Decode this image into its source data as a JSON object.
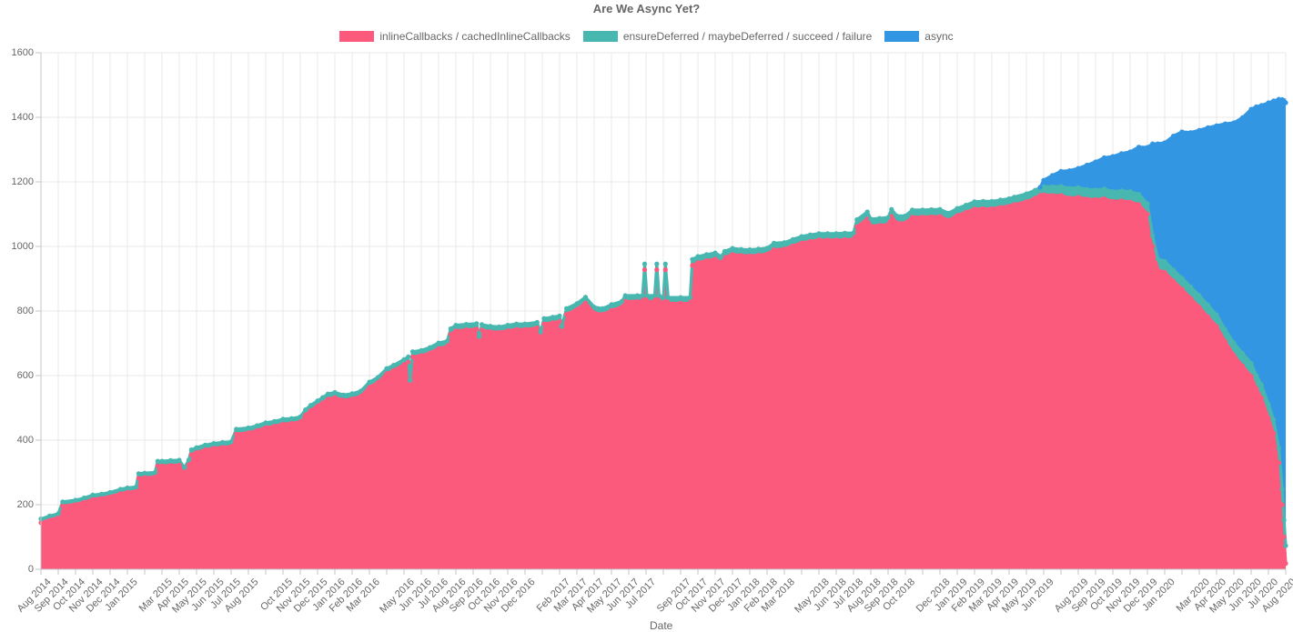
{
  "chart": {
    "title": "Are We Async Yet?"
  },
  "style": {
    "text_color": "#666666",
    "grid_color": "#e9e9e9",
    "axis_color": "#c6c6c6",
    "background": "#ffffff"
  },
  "chart_data": {
    "type": "area",
    "stacked": true,
    "title": "Are We Async Yet?",
    "xlabel": "Date",
    "ylabel": "",
    "ylim": [
      0,
      1600
    ],
    "y_ticks": [
      0,
      200,
      400,
      600,
      800,
      1000,
      1200,
      1400,
      1600
    ],
    "grid": true,
    "legend_position": "top",
    "x_unit": "months since Aug 2014",
    "x_tick_labels": [
      "Aug 2014",
      "Sep 2014",
      "Oct 2014",
      "Nov 2014",
      "Dec 2014",
      "Jan 2015",
      "",
      "Mar 2015",
      "Apr 2015",
      "May 2015",
      "Jun 2015",
      "Jul 2015",
      "Aug 2015",
      "",
      "Oct 2015",
      "Nov 2015",
      "Dec 2015",
      "Jan 2016",
      "Feb 2016",
      "Mar 2016",
      "",
      "May 2016",
      "Jun 2016",
      "Jul 2016",
      "Aug 2016",
      "Sep 2016",
      "Oct 2016",
      "Nov 2016",
      "Dec 2016",
      "",
      "Feb 2017",
      "Mar 2017",
      "Apr 2017",
      "May 2017",
      "Jun 2017",
      "Jul 2017",
      "",
      "Sep 2017",
      "Oct 2017",
      "Nov 2017",
      "Dec 2017",
      "Jan 2018",
      "Feb 2018",
      "Mar 2018",
      "",
      "May 2018",
      "Jun 2018",
      "Jul 2018",
      "Aug 2018",
      "Sep 2018",
      "Oct 2018",
      "",
      "Dec 2018",
      "Jan 2019",
      "Feb 2019",
      "Mar 2019",
      "Apr 2019",
      "May 2019",
      "Jun 2019",
      "",
      "Aug 2019",
      "Sep 2019",
      "Oct 2019",
      "Nov 2019",
      "Dec 2019",
      "Jan 2020",
      "",
      "Mar 2020",
      "Apr 2020",
      "May 2020",
      "Jun 2020",
      "Jul 2020",
      "Aug 2020"
    ],
    "series": [
      {
        "name": "inlineCallbacks / cachedInlineCallbacks",
        "color": "#FB5A7C",
        "key": "p"
      },
      {
        "name": "ensureDeferred / maybeDeferred / succeed / failure",
        "color": "#48B7B0",
        "key": "t"
      },
      {
        "name": "async",
        "color": "#3296E3",
        "key": "b"
      }
    ],
    "points_format": [
      "x_month_index",
      "inlineCallbacks",
      "ensureDeferred_delta",
      "async_delta"
    ],
    "points": [
      [
        0,
        144,
        12,
        null
      ],
      [
        0.5,
        153,
        12,
        null
      ],
      [
        1,
        160,
        12,
        null
      ],
      [
        1.25,
        196,
        13,
        null
      ],
      [
        2,
        201,
        13,
        null
      ],
      [
        2.5,
        208,
        13,
        null
      ],
      [
        3,
        217,
        13,
        null
      ],
      [
        3.5,
        220,
        13,
        null
      ],
      [
        4,
        225,
        13,
        null
      ],
      [
        4.6,
        235,
        13,
        null
      ],
      [
        5,
        239,
        13,
        null
      ],
      [
        5.5,
        242,
        13,
        null
      ],
      [
        5.65,
        282,
        14,
        null
      ],
      [
        6,
        284,
        14,
        null
      ],
      [
        6.6,
        286,
        14,
        null
      ],
      [
        6.75,
        320,
        15,
        null
      ],
      [
        7,
        320,
        15,
        null
      ],
      [
        7.5,
        322,
        15,
        null
      ],
      [
        8,
        323,
        15,
        null
      ],
      [
        8.3,
        300,
        15,
        null
      ],
      [
        8.55,
        324,
        15,
        null
      ],
      [
        8.7,
        355,
        15,
        null
      ],
      [
        9,
        362,
        15,
        null
      ],
      [
        9.5,
        370,
        15,
        null
      ],
      [
        10,
        375,
        15,
        null
      ],
      [
        10.5,
        378,
        15,
        null
      ],
      [
        11,
        380,
        15,
        null
      ],
      [
        11.3,
        419,
        15,
        null
      ],
      [
        12,
        423,
        15,
        null
      ],
      [
        12.5,
        430,
        15,
        null
      ],
      [
        13,
        439,
        15,
        null
      ],
      [
        13.5,
        443,
        15,
        null
      ],
      [
        14,
        450,
        15,
        null
      ],
      [
        14.5,
        452,
        15,
        null
      ],
      [
        15,
        457,
        15,
        null
      ],
      [
        15.3,
        478,
        16,
        null
      ],
      [
        15.6,
        492,
        16,
        null
      ],
      [
        16,
        506,
        16,
        null
      ],
      [
        16.3,
        516,
        16,
        null
      ],
      [
        16.6,
        527,
        16,
        null
      ],
      [
        17,
        532,
        16,
        null
      ],
      [
        17.5,
        524,
        16,
        null
      ],
      [
        18,
        528,
        16,
        null
      ],
      [
        18.5,
        536,
        16,
        null
      ],
      [
        19,
        564,
        16,
        null
      ],
      [
        19.5,
        579,
        16,
        null
      ],
      [
        20,
        606,
        16,
        null
      ],
      [
        20.4,
        616,
        16,
        null
      ],
      [
        21,
        634,
        16,
        null
      ],
      [
        21.25,
        642,
        16,
        null
      ],
      [
        21.35,
        570,
        15,
        null
      ],
      [
        21.5,
        658,
        16,
        null
      ],
      [
        22,
        662,
        16,
        null
      ],
      [
        22.5,
        670,
        17,
        null
      ],
      [
        23,
        684,
        17,
        null
      ],
      [
        23.5,
        690,
        17,
        null
      ],
      [
        23.7,
        728,
        17,
        null
      ],
      [
        24,
        739,
        17,
        null
      ],
      [
        24.6,
        742,
        17,
        null
      ],
      [
        25.2,
        744,
        17,
        null
      ],
      [
        25.35,
        705,
        16,
        null
      ],
      [
        25.5,
        741,
        17,
        null
      ],
      [
        26,
        736,
        17,
        null
      ],
      [
        26.5,
        734,
        17,
        null
      ],
      [
        27,
        739,
        17,
        null
      ],
      [
        27.5,
        743,
        17,
        null
      ],
      [
        28,
        743,
        17,
        null
      ],
      [
        28.7,
        748,
        17,
        null
      ],
      [
        28.9,
        718,
        17,
        null
      ],
      [
        29.1,
        760,
        17,
        null
      ],
      [
        29.6,
        764,
        17,
        null
      ],
      [
        30,
        768,
        17,
        null
      ],
      [
        30.12,
        735,
        17,
        null
      ],
      [
        30.4,
        790,
        18,
        null
      ],
      [
        31,
        805,
        18,
        null
      ],
      [
        31.5,
        825,
        18,
        null
      ],
      [
        32,
        794,
        18,
        null
      ],
      [
        32.5,
        790,
        18,
        null
      ],
      [
        33,
        802,
        18,
        null
      ],
      [
        33.6,
        812,
        18,
        null
      ],
      [
        33.8,
        830,
        18,
        null
      ],
      [
        34.5,
        830,
        18,
        null
      ],
      [
        34.8,
        830,
        18,
        null
      ],
      [
        34.92,
        928,
        18,
        null
      ],
      [
        35.05,
        830,
        18,
        null
      ],
      [
        35.5,
        830,
        18,
        null
      ],
      [
        35.62,
        928,
        18,
        null
      ],
      [
        35.75,
        830,
        18,
        null
      ],
      [
        36,
        824,
        18,
        null
      ],
      [
        36.12,
        928,
        18,
        null
      ],
      [
        36.28,
        824,
        18,
        null
      ],
      [
        37,
        824,
        18,
        null
      ],
      [
        37.55,
        824,
        18,
        null
      ],
      [
        37.68,
        941,
        19,
        null
      ],
      [
        38,
        950,
        19,
        null
      ],
      [
        38.5,
        956,
        19,
        null
      ],
      [
        39,
        961,
        19,
        null
      ],
      [
        39.35,
        950,
        19,
        null
      ],
      [
        39.55,
        966,
        19,
        null
      ],
      [
        40,
        975,
        19,
        null
      ],
      [
        40.5,
        972,
        19,
        null
      ],
      [
        41,
        971,
        19,
        null
      ],
      [
        41.5,
        973,
        19,
        null
      ],
      [
        42,
        976,
        19,
        null
      ],
      [
        42.4,
        990,
        20,
        null
      ],
      [
        43,
        992,
        20,
        null
      ],
      [
        43.5,
        1002,
        20,
        null
      ],
      [
        44,
        1011,
        20,
        null
      ],
      [
        44.5,
        1016,
        20,
        null
      ],
      [
        45,
        1020,
        20,
        null
      ],
      [
        45.5,
        1020,
        20,
        null
      ],
      [
        46,
        1020,
        20,
        null
      ],
      [
        46.5,
        1021,
        20,
        null
      ],
      [
        47,
        1022,
        20,
        null
      ],
      [
        47.2,
        1061,
        22,
        null
      ],
      [
        47.8,
        1085,
        22,
        null
      ],
      [
        48,
        1063,
        22,
        null
      ],
      [
        48.5,
        1065,
        22,
        null
      ],
      [
        49,
        1068,
        22,
        null
      ],
      [
        49.2,
        1093,
        22,
        null
      ],
      [
        49.5,
        1073,
        22,
        null
      ],
      [
        50,
        1073,
        22,
        null
      ],
      [
        50.4,
        1091,
        22,
        null
      ],
      [
        51,
        1091,
        22,
        null
      ],
      [
        51.5,
        1092,
        22,
        null
      ],
      [
        52,
        1093,
        22,
        null
      ],
      [
        52.5,
        1081,
        22,
        null
      ],
      [
        53,
        1096,
        22,
        null
      ],
      [
        53.5,
        1106,
        22,
        null
      ],
      [
        54,
        1116,
        23,
        null
      ],
      [
        54.5,
        1117,
        23,
        null
      ],
      [
        55,
        1117,
        23,
        null
      ],
      [
        55.5,
        1121,
        23,
        null
      ],
      [
        56,
        1125,
        23,
        null
      ],
      [
        56.3,
        1130,
        23,
        null
      ],
      [
        57,
        1139,
        24,
        null
      ],
      [
        57.5,
        1150,
        24,
        null
      ],
      [
        57.8,
        1158,
        25,
        0
      ],
      [
        58,
        1160,
        25,
        20
      ],
      [
        58.5,
        1158,
        27,
        35
      ],
      [
        59,
        1158,
        28,
        47
      ],
      [
        59.5,
        1150,
        30,
        55
      ],
      [
        60,
        1152,
        30,
        60
      ],
      [
        60.5,
        1147,
        30,
        75
      ],
      [
        61,
        1145,
        30,
        87
      ],
      [
        61.5,
        1148,
        30,
        97
      ],
      [
        62,
        1140,
        30,
        109
      ],
      [
        62.5,
        1141,
        31,
        116
      ],
      [
        63,
        1138,
        32,
        123
      ],
      [
        63.5,
        1130,
        32,
        146
      ],
      [
        64,
        1100,
        32,
        175
      ],
      [
        64.3,
        1000,
        33,
        285
      ],
      [
        64.6,
        928,
        33,
        357
      ],
      [
        65,
        920,
        34,
        367
      ],
      [
        65.5,
        893,
        34,
        415
      ],
      [
        66,
        868,
        34,
        453
      ],
      [
        66.5,
        840,
        35,
        478
      ],
      [
        67,
        812,
        36,
        512
      ],
      [
        67.5,
        782,
        36,
        550
      ],
      [
        68,
        752,
        36,
        586
      ],
      [
        68.5,
        705,
        37,
        638
      ],
      [
        69,
        663,
        38,
        682
      ],
      [
        69.5,
        630,
        39,
        730
      ],
      [
        70,
        598,
        40,
        787
      ],
      [
        70.3,
        560,
        40,
        833
      ],
      [
        70.6,
        530,
        41,
        866
      ],
      [
        71,
        468,
        42,
        935
      ],
      [
        71.3,
        420,
        43,
        988
      ],
      [
        71.6,
        330,
        45,
        1081
      ],
      [
        71.8,
        200,
        48,
        1207
      ],
      [
        71.9,
        100,
        52,
        1300
      ],
      [
        72,
        18,
        55,
        1372
      ]
    ]
  }
}
